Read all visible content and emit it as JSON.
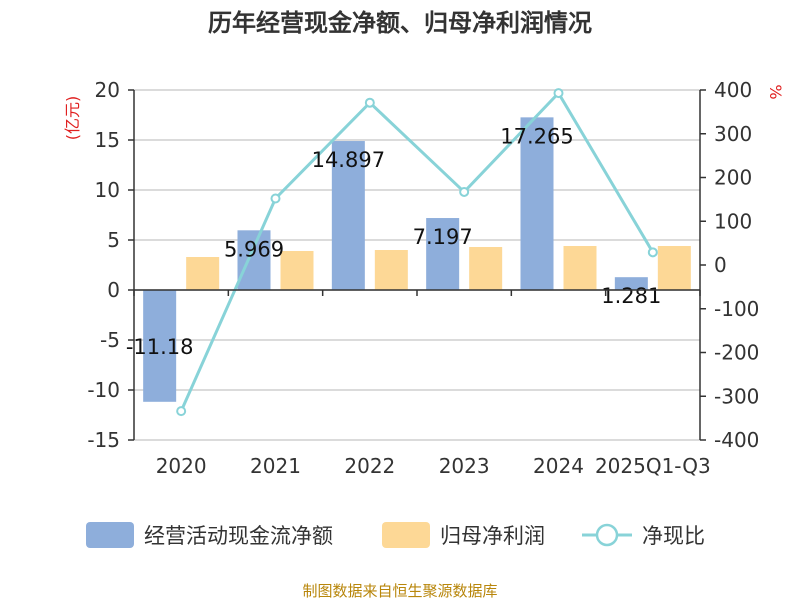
{
  "chart_data": {
    "type": "bar",
    "title": "历年经营现金净额、归母净利润情况",
    "categories": [
      "2020",
      "2021",
      "2022",
      "2023",
      "2024",
      "2025Q1-Q3"
    ],
    "series": [
      {
        "name": "经营活动现金流净额",
        "type": "bar",
        "axis": "left",
        "values": [
          -11.18,
          5.969,
          14.897,
          7.197,
          17.265,
          1.281
        ]
      },
      {
        "name": "归母净利润",
        "type": "bar",
        "axis": "left",
        "values": [
          3.3,
          3.9,
          4.0,
          4.3,
          4.4,
          4.4
        ]
      },
      {
        "name": "净现比",
        "type": "line",
        "axis": "right",
        "values": [
          -334,
          152,
          371,
          167,
          393,
          29
        ]
      }
    ],
    "data_labels": [
      "-11.18",
      "5.969",
      "14.897",
      "7.197",
      "17.265",
      "1.281"
    ],
    "left_axis": {
      "unit": "(亿元)",
      "ylim": [
        -15,
        20
      ],
      "ticks": [
        20,
        15,
        10,
        5,
        0,
        -5,
        -10,
        -15
      ]
    },
    "right_axis": {
      "unit": "%",
      "ylim": [
        -400,
        400
      ],
      "ticks": [
        400,
        300,
        200,
        100,
        0,
        -100,
        -200,
        -300,
        -400
      ]
    },
    "grid": true,
    "legend_position": "bottom",
    "colors": {
      "cashflow": "#8eaedb",
      "profit": "#fdd896",
      "ratio": "#88d3d8"
    },
    "source": "制图数据来自恒生聚源数据库"
  }
}
